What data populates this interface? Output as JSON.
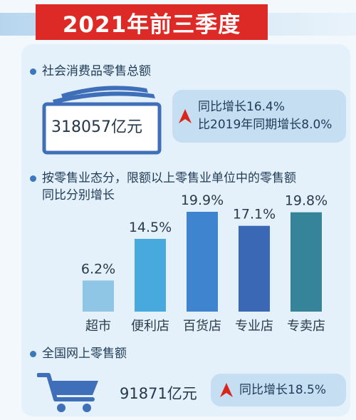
{
  "title": "2021年前三季度",
  "retail": {
    "heading": "社会消费品零售总额",
    "value": "318057亿元",
    "growth_line1": "同比增长16.4%",
    "growth_line2": "比2019年同期增长8.0%"
  },
  "chart_section": {
    "heading_line1": "按零售业态分，限额以上零售业单位中的零售额",
    "heading_line2": "同比分别增长"
  },
  "chart_data": {
    "type": "bar",
    "categories": [
      "超市",
      "便利店",
      "百货店",
      "专业店",
      "专卖店"
    ],
    "values": [
      6.2,
      14.5,
      19.9,
      17.1,
      19.8
    ],
    "value_labels": [
      "6.2%",
      "14.5%",
      "19.9%",
      "17.1%",
      "19.8%"
    ],
    "colors": [
      "#8fc6e6",
      "#47a9dd",
      "#3f84cf",
      "#3a68b4",
      "#36849a"
    ],
    "title": "",
    "xlabel": "",
    "ylabel": "",
    "grid": false
  },
  "online": {
    "heading": "全国网上零售额",
    "value": "91871亿元",
    "growth": "同比增长18.5%"
  },
  "colors": {
    "title_red": "#dd2a26",
    "accent_blue": "#3a79bb",
    "arrow_red": "#d9261c"
  },
  "icons": [
    "banknote-stack-icon",
    "up-arrow-icon",
    "shopping-cart-icon"
  ]
}
